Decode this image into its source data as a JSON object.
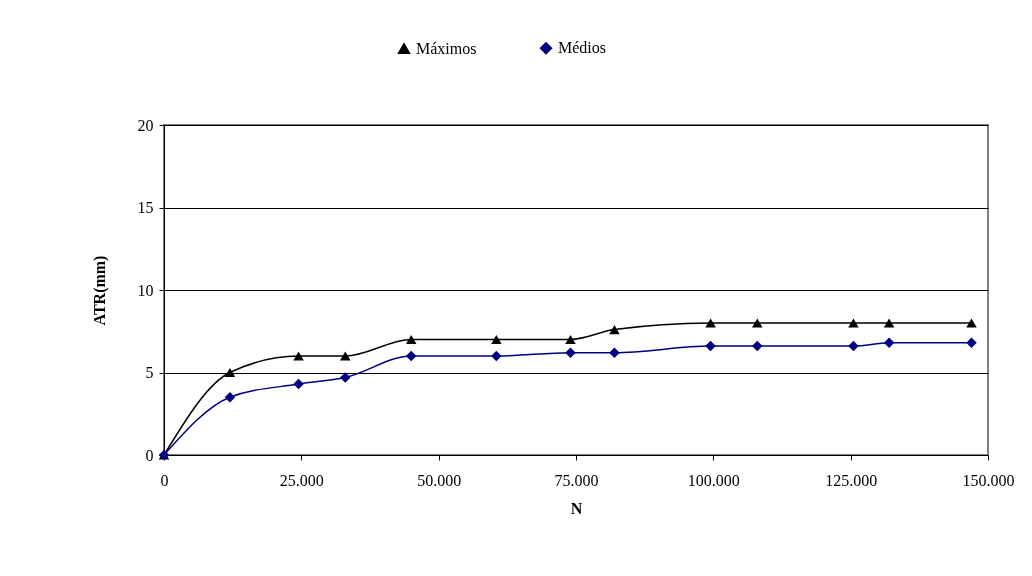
{
  "chart_data": {
    "type": "line",
    "xlabel": "N",
    "ylabel": "ATR(mm)",
    "x": [
      0,
      12000,
      24500,
      33000,
      45000,
      60500,
      74000,
      82000,
      99500,
      108000,
      125500,
      132000,
      147000
    ],
    "series": [
      {
        "name": "Máximos",
        "color": "#000000",
        "marker": "triangle",
        "values": [
          0,
          5,
          6,
          6,
          7,
          7,
          7,
          7.6,
          8,
          8,
          8,
          8,
          8
        ]
      },
      {
        "name": "Médios",
        "color": "#000080",
        "marker": "diamond",
        "values": [
          0,
          3.5,
          4.3,
          4.7,
          6,
          6,
          6.2,
          6.2,
          6.6,
          6.6,
          6.6,
          6.8,
          6.8
        ]
      }
    ],
    "xlim": [
      0,
      150000
    ],
    "xticks": [
      0,
      {
        "value": 25000,
        "label": "25.000"
      },
      {
        "value": 50000,
        "label": "50.000"
      },
      {
        "value": 75000,
        "label": "75.000"
      },
      {
        "value": 100000,
        "label": "100.000"
      },
      {
        "value": 125000,
        "label": "125.000"
      },
      {
        "value": 150000,
        "label": "150.000"
      }
    ],
    "ylim": [
      0,
      20
    ],
    "yticks": [
      0,
      5,
      10,
      15,
      20
    ],
    "grid": "y",
    "legend": "top",
    "line_style": "solid"
  }
}
